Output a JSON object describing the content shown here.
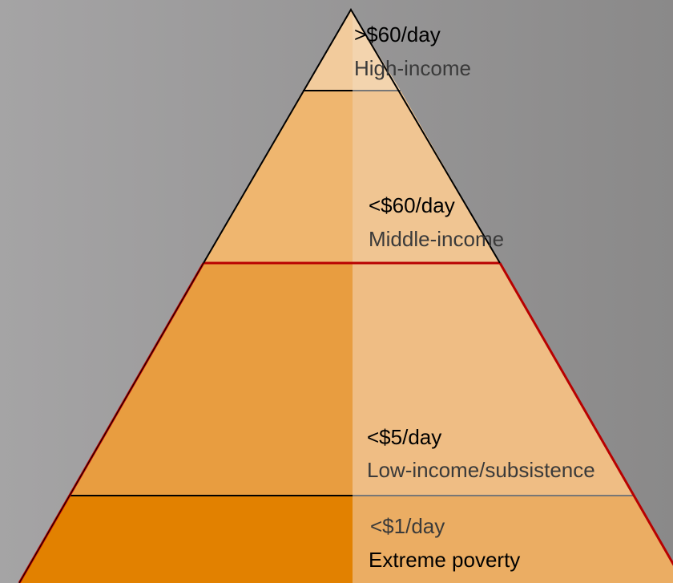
{
  "tiers": [
    {
      "price": ">$60/day",
      "label": "High-income"
    },
    {
      "price": "<$60/day",
      "label": "Middle-income"
    },
    {
      "price": "<$5/day",
      "label": "Low-income/subsistence"
    },
    {
      "price": "<$1/day",
      "label": "Extreme poverty"
    }
  ]
}
